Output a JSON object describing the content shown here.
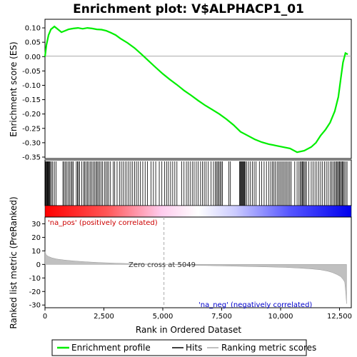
{
  "chart_data": {
    "type": "line",
    "title": "Enrichment plot: V$ALPHACP1_01",
    "xlabel": "Rank in Ordered Dataset",
    "ylabel_top": "Enrichment score (ES)",
    "ylabel_bottom": "Ranked list metric (PreRanked)",
    "xlim": [
      0,
      13000
    ],
    "xticks": [
      0,
      2500,
      5000,
      7500,
      10000,
      12500
    ],
    "xtick_labels": [
      "0",
      "2,500",
      "5,000",
      "7,500",
      "10,000",
      "12,500"
    ],
    "es_ylim": [
      -0.355,
      0.13
    ],
    "es_yticks": [
      0.1,
      0.05,
      0.0,
      -0.05,
      -0.1,
      -0.15,
      -0.2,
      -0.25,
      -0.3,
      -0.35
    ],
    "es_ytick_labels": [
      "0.10",
      "0.05",
      "0.00",
      "-0.05",
      "-0.10",
      "-0.15",
      "-0.20",
      "-0.25",
      "-0.30",
      "-0.35"
    ],
    "metric_ylim": [
      -32,
      35
    ],
    "metric_yticks": [
      30,
      20,
      10,
      0,
      -10,
      -20,
      -30
    ],
    "metric_ytick_labels": [
      "30",
      "20",
      "10",
      "0",
      "-10",
      "-20",
      "-30"
    ],
    "zero_cross": 5049,
    "zero_cross_label": "Zero cross at 5049",
    "pos_label": "'na_pos' (positively correlated)",
    "neg_label": "'na_neg' (negatively correlated)",
    "series": [
      {
        "name": "Enrichment profile",
        "color": "#00ee00",
        "x": [
          0,
          60,
          150,
          250,
          400,
          550,
          700,
          850,
          1000,
          1200,
          1400,
          1600,
          1800,
          2000,
          2200,
          2400,
          2600,
          2800,
          3000,
          3200,
          3500,
          3800,
          4100,
          4400,
          4700,
          5000,
          5300,
          5600,
          5900,
          6200,
          6500,
          6800,
          7100,
          7400,
          7700,
          8000,
          8300,
          8600,
          8900,
          9200,
          9500,
          9800,
          10100,
          10400,
          10700,
          11000,
          11300,
          11500,
          11700,
          11900,
          12100,
          12300,
          12450,
          12550,
          12650,
          12750,
          12850
        ],
        "y": [
          0.0,
          0.04,
          0.075,
          0.095,
          0.105,
          0.095,
          0.085,
          0.09,
          0.095,
          0.098,
          0.1,
          0.097,
          0.1,
          0.098,
          0.095,
          0.094,
          0.09,
          0.083,
          0.075,
          0.063,
          0.048,
          0.03,
          0.008,
          -0.015,
          -0.038,
          -0.06,
          -0.08,
          -0.098,
          -0.118,
          -0.135,
          -0.153,
          -0.17,
          -0.185,
          -0.2,
          -0.218,
          -0.238,
          -0.262,
          -0.275,
          -0.288,
          -0.298,
          -0.305,
          -0.31,
          -0.315,
          -0.32,
          -0.333,
          -0.328,
          -0.315,
          -0.3,
          -0.275,
          -0.255,
          -0.23,
          -0.19,
          -0.14,
          -0.08,
          -0.02,
          0.012,
          0.008
        ]
      }
    ],
    "hits_label": "Hits",
    "hits": [
      20,
      45,
      70,
      95,
      120,
      145,
      170,
      195,
      230,
      280,
      330,
      400,
      470,
      760,
      810,
      860,
      920,
      980,
      1040,
      1100,
      1150,
      1200,
      1330,
      1380,
      1420,
      1470,
      1560,
      1640,
      1690,
      1750,
      1800,
      1860,
      1920,
      1980,
      2040,
      2100,
      2160,
      2210,
      2260,
      2320,
      2380,
      2440,
      2520,
      2580,
      2640,
      2700,
      2780,
      2900,
      2960,
      3060,
      3160,
      3240,
      3320,
      3400,
      3480,
      3560,
      3640,
      3720,
      3800,
      3880,
      3960,
      4050,
      4150,
      4250,
      4350,
      4500,
      4600,
      4700,
      4850,
      4960,
      5080,
      5160,
      5240,
      5330,
      5420,
      5510,
      5600,
      5800,
      5900,
      6000,
      6080,
      6160,
      6250,
      6330,
      6420,
      6500,
      6600,
      6680,
      6760,
      6840,
      6930,
      7050,
      7150,
      7230,
      7280,
      7330,
      7380,
      7430,
      7480,
      7530,
      7800,
      7870,
      8260,
      8290,
      8320,
      8350,
      8380,
      8410,
      8440,
      8470,
      8500,
      8560,
      8640,
      8720,
      8800,
      8880,
      8960,
      9100,
      9200,
      9300,
      9400,
      9500,
      9580,
      9650,
      9710,
      9770,
      9850,
      9910,
      9970,
      10030,
      10090,
      10150,
      10210,
      10270,
      10330,
      10390,
      10450,
      10600,
      10700,
      10780,
      10840,
      10880,
      10920,
      10960,
      11000,
      11050,
      11100,
      11200,
      11300,
      11380,
      11460,
      11540,
      11620,
      11700,
      11780,
      11860,
      11940,
      12020,
      12100,
      12160,
      12220,
      12280,
      12330,
      12380,
      12420,
      12460,
      12500,
      12540,
      12580,
      12620,
      12660,
      12700,
      12760,
      12820
    ],
    "metric": {
      "x": [
        0,
        50,
        150,
        300,
        500,
        800,
        1200,
        1700,
        2300,
        3000,
        3800,
        4500,
        5049,
        5600,
        6300,
        7000,
        7800,
        8600,
        9400,
        10200,
        10800,
        11300,
        11700,
        12000,
        12200,
        12400,
        12550,
        12650,
        12720,
        12760,
        12800
      ],
      "y": [
        9.5,
        7.0,
        5.8,
        4.8,
        4.0,
        3.3,
        2.6,
        2.0,
        1.4,
        0.9,
        0.5,
        0.2,
        0.0,
        -0.3,
        -0.6,
        -0.9,
        -1.2,
        -1.5,
        -1.8,
        -2.2,
        -2.7,
        -3.3,
        -4.0,
        -5.0,
        -6.0,
        -7.5,
        -9.0,
        -11.0,
        -13.0,
        -20.0,
        -29.0
      ]
    },
    "legend": [
      "Enrichment profile",
      "Hits",
      "Ranking metric scores"
    ],
    "colors": {
      "es_line": "#00ee00",
      "hits": "#000000",
      "metric_fill": "#c0c0c0",
      "zero_line": "#aaaaaa",
      "pos_text": "#cc0000",
      "neg_text": "#0000cc",
      "bar_red": "#ff0000",
      "bar_blue": "#0000ff"
    }
  }
}
